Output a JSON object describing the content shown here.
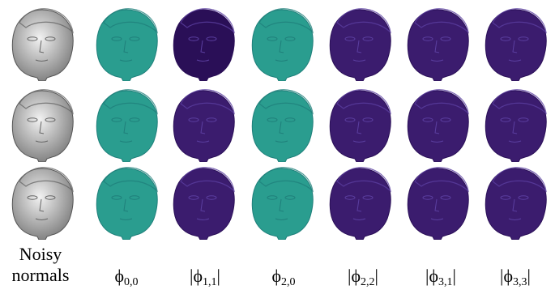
{
  "rows": [
    {
      "name": "row-1"
    },
    {
      "name": "row-2"
    },
    {
      "name": "row-3"
    }
  ],
  "columns": [
    {
      "key": "noisy",
      "style": "shaded-gray"
    },
    {
      "key": "phi00",
      "style": "teal"
    },
    {
      "key": "phi11",
      "style": "dark-purple"
    },
    {
      "key": "phi20",
      "style": "teal"
    },
    {
      "key": "phi22",
      "style": "dark-purple"
    },
    {
      "key": "phi31",
      "style": "dark-purple"
    },
    {
      "key": "phi33",
      "style": "dark-purple"
    }
  ],
  "labels": {
    "noisy_line1": "Noisy",
    "noisy_line2": "normals",
    "phi00": {
      "prefix": "",
      "symbol": "ϕ",
      "sub": "0,0",
      "suffix": ""
    },
    "phi11": {
      "prefix": "|",
      "symbol": "ϕ",
      "sub": "1,1",
      "suffix": "|"
    },
    "phi20": {
      "prefix": "",
      "symbol": "ϕ",
      "sub": "2,0",
      "suffix": ""
    },
    "phi22": {
      "prefix": "|",
      "symbol": "ϕ",
      "sub": "2,2",
      "suffix": "|"
    },
    "phi31": {
      "prefix": "|",
      "symbol": "ϕ",
      "sub": "3,1",
      "suffix": "|"
    },
    "phi33": {
      "prefix": "|",
      "symbol": "ϕ",
      "sub": "3,3",
      "suffix": "|"
    }
  },
  "colors": {
    "teal": "#2a9d8f",
    "teal_dark": "#1f7f7a",
    "purple": "#3b1c6e",
    "purple_deep": "#2a0f57",
    "gray_light": "#f2f2f2",
    "gray_dark": "#7a7a7a"
  }
}
